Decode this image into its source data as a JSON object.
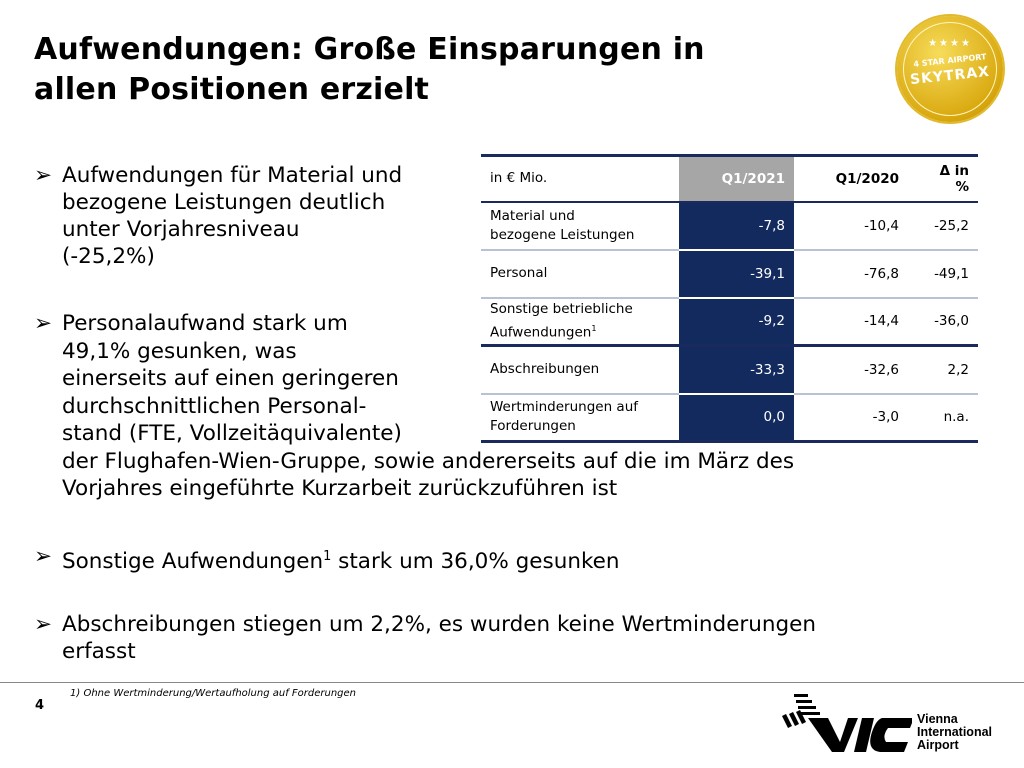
{
  "title": [
    "Aufwendungen: Große Einsparungen in",
    "allen Positionen erzielt"
  ],
  "seal": {
    "stars": "★★★★",
    "line1": "4 STAR AIRPORT",
    "line2": "SKYTRAX"
  },
  "bullet_marker": "➢",
  "bullets": [
    {
      "lines": [
        "Aufwendungen für Material und",
        "bezogene Leistungen deutlich",
        "unter Vorjahresniveau",
        "(-25,2%)"
      ]
    },
    {
      "lines": [
        "Personalaufwand stark um",
        "49,1% gesunken, was",
        "einerseits auf einen geringeren",
        "durchschnittlichen Personal-",
        "stand (FTE, Vollzeitäquivalente)",
        "der Flughafen-Wien-Gruppe, sowie andererseits auf die im März des",
        "Vorjahres eingeführte Kurzarbeit zurückzuführen ist"
      ]
    },
    {
      "lines": [
        "Sonstige Aufwendungen",
        "1",
        " stark um 36,0% gesunken"
      ]
    },
    {
      "lines": [
        "Abschreibungen stiegen um 2,2%, es wurden keine Wertminderungen",
        "erfasst"
      ]
    }
  ],
  "table": {
    "header": {
      "label": "in € Mio.",
      "q1_2021": "Q1/2021",
      "q1_2020": "Q1/2020",
      "delta_l1": "Δ in",
      "delta_l2": "%"
    },
    "rows": [
      {
        "l1": "Material und",
        "l2": "bezogene Leistungen",
        "sup": "",
        "q1_2021": "-7,8",
        "q1_2020": "-10,4",
        "delta": "-25,2"
      },
      {
        "l1": "Personal",
        "l2": "",
        "sup": "",
        "q1_2021": "-39,1",
        "q1_2020": "-76,8",
        "delta": "-49,1"
      },
      {
        "l1": "Sonstige betriebliche",
        "l2": "Aufwendungen",
        "sup": "1",
        "q1_2021": "-9,2",
        "q1_2020": "-14,4",
        "delta": "-36,0"
      },
      {
        "l1": "Abschreibungen",
        "l2": "",
        "sup": "",
        "q1_2021": "-33,3",
        "q1_2020": "-32,6",
        "delta": "2,2"
      },
      {
        "l1": "Wertminderungen auf",
        "l2": "Forderungen",
        "sup": "",
        "q1_2021": "0,0",
        "q1_2020": "-3,0",
        "delta": "n.a."
      }
    ]
  },
  "footnote": "1)    Ohne Wertminderung/Wertaufholung auf Forderungen",
  "page_number": "4",
  "logo": {
    "mark": "VIE",
    "l1": "Vienna",
    "l2": "International",
    "l3": "Airport"
  },
  "colors": {
    "navy": "#132a5e",
    "gray_header": "#a6a6a6",
    "gold": "#d9a80f"
  }
}
